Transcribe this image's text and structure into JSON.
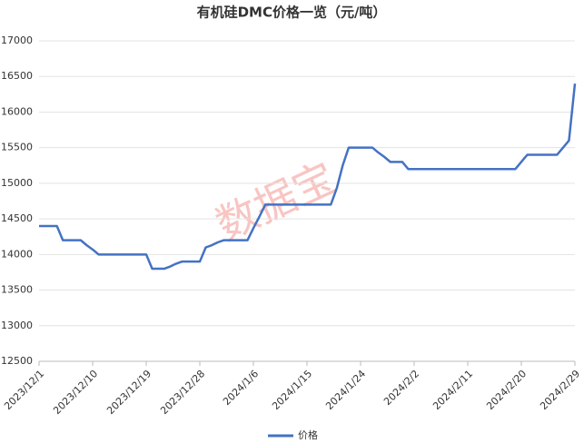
{
  "chart_data": {
    "type": "line",
    "title": "有机硅DMC价格一览（元/吨）",
    "watermark": "数据宝",
    "categories": [
      "2023/12/1",
      null,
      null,
      null,
      null,
      null,
      null,
      null,
      null,
      "2023/12/10",
      null,
      null,
      null,
      null,
      null,
      null,
      null,
      null,
      "2023/12/19",
      null,
      null,
      null,
      null,
      null,
      null,
      null,
      null,
      "2023/12/28",
      null,
      null,
      null,
      null,
      null,
      null,
      null,
      null,
      "2024/1/6",
      null,
      null,
      null,
      null,
      null,
      null,
      null,
      null,
      "2024/1/15",
      null,
      null,
      null,
      null,
      null,
      null,
      null,
      null,
      "2024/1/24",
      null,
      null,
      null,
      null,
      null,
      null,
      null,
      null,
      "2024/2/2",
      null,
      null,
      null,
      null,
      null,
      null,
      null,
      null,
      "2024/2/11",
      null,
      null,
      null,
      null,
      null,
      null,
      null,
      null,
      "2024/2/20",
      null,
      null,
      null,
      null,
      null,
      null,
      null,
      null,
      "2024/2/29"
    ],
    "series": [
      {
        "name": "价格",
        "color": "#4472c4",
        "values": [
          14400,
          14400,
          14400,
          14400,
          14200,
          14200,
          14200,
          14200,
          14130,
          14070,
          14000,
          14000,
          14000,
          14000,
          14000,
          14000,
          14000,
          14000,
          14000,
          13800,
          13800,
          13800,
          13830,
          13870,
          13900,
          13900,
          13900,
          13900,
          14100,
          14130,
          14170,
          14200,
          14200,
          14200,
          14200,
          14200,
          14370,
          14530,
          14700,
          14700,
          14700,
          14700,
          14700,
          14700,
          14700,
          14700,
          14700,
          14700,
          14700,
          14700,
          14930,
          15250,
          15500,
          15500,
          15500,
          15500,
          15500,
          15430,
          15370,
          15300,
          15300,
          15300,
          15200,
          15200,
          15200,
          15200,
          15200,
          15200,
          15200,
          15200,
          15200,
          15200,
          15200,
          15200,
          15200,
          15200,
          15200,
          15200,
          15200,
          15200,
          15200,
          15300,
          15400,
          15400,
          15400,
          15400,
          15400,
          15400,
          15500,
          15600,
          16400
        ]
      }
    ],
    "ylim": [
      12500,
      17000
    ],
    "yticks": [
      12500,
      13000,
      13500,
      14000,
      14500,
      15000,
      15500,
      16000,
      16500,
      17000
    ],
    "grid": true,
    "legend": "bottom"
  }
}
